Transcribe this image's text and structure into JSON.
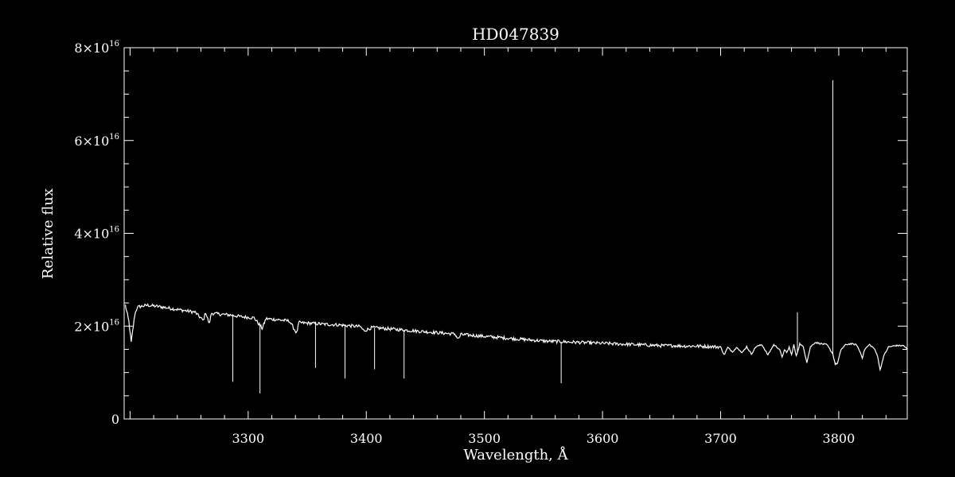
{
  "chart_data": {
    "type": "line",
    "title": "HD047839",
    "xlabel": "Wavelength, Å",
    "ylabel": "Relative flux",
    "xlim": [
      3195,
      3858
    ],
    "ylim": [
      0,
      8e+16
    ],
    "x_ticks": [
      3300,
      3400,
      3500,
      3600,
      3700,
      3800
    ],
    "y_ticks": [
      {
        "value": 0,
        "mantissa": "0",
        "exponent": ""
      },
      {
        "value": 2e+16,
        "mantissa": "2×10",
        "exponent": "16"
      },
      {
        "value": 4e+16,
        "mantissa": "4×10",
        "exponent": "16"
      },
      {
        "value": 6e+16,
        "mantissa": "6×10",
        "exponent": "16"
      },
      {
        "value": 8e+16,
        "mantissa": "8×10",
        "exponent": "16"
      }
    ],
    "colors": {
      "background": "#000000",
      "foreground": "#ffffff"
    },
    "grid": false,
    "series": [
      {
        "x": [
          3196,
          3199,
          3201,
          3204,
          3206,
          3208,
          3215,
          3225,
          3235,
          3245,
          3255,
          3262,
          3264,
          3267,
          3269,
          3275,
          3285,
          3295,
          3305,
          3312,
          3315,
          3325,
          3335,
          3341,
          3343,
          3345,
          3355,
          3365,
          3375,
          3385,
          3395,
          3398,
          3405,
          3415,
          3425,
          3435,
          3445,
          3455,
          3465,
          3475,
          3478,
          3480,
          3490,
          3500,
          3510,
          3520,
          3530,
          3540,
          3550,
          3560,
          3570,
          3580,
          3590,
          3600,
          3610,
          3620,
          3630,
          3640,
          3650,
          3660,
          3670,
          3680,
          3690,
          3700,
          3703,
          3706,
          3710,
          3714,
          3718,
          3722,
          3726,
          3730,
          3735,
          3740,
          3745,
          3750,
          3752,
          3754,
          3756,
          3758,
          3760,
          3762,
          3764,
          3767,
          3770,
          3773,
          3776,
          3780,
          3785,
          3790,
          3795,
          3797,
          3799,
          3802,
          3806,
          3810,
          3815,
          3818,
          3820,
          3822,
          3826,
          3830,
          3833,
          3835,
          3838,
          3842,
          3848,
          3855,
          3858
        ],
        "y": [
          2.45e+16,
          2.1e+16,
          1.65e+16,
          2.25e+16,
          2.4e+16,
          2.42e+16,
          2.45e+16,
          2.42e+16,
          2.38e+16,
          2.34e+16,
          2.3e+16,
          2.12e+16,
          2.3e+16,
          2.05e+16,
          2.28e+16,
          2.26e+16,
          2.24e+16,
          2.2e+16,
          2.18e+16,
          1.95e+16,
          2.16e+16,
          2.14e+16,
          2.11e+16,
          1.85e+16,
          2.08e+16,
          2.07e+16,
          2.06e+16,
          2.04e+16,
          2.03e+16,
          2.01e+16,
          1.99e+16,
          1.9e+16,
          1.97e+16,
          1.95e+16,
          1.93e+16,
          1.91e+16,
          1.89e+16,
          1.87e+16,
          1.85e+16,
          1.83e+16,
          1.72e+16,
          1.82e+16,
          1.8e+16,
          1.78e+16,
          1.76e+16,
          1.74e+16,
          1.72e+16,
          1.7e+16,
          1.68e+16,
          1.67e+16,
          1.66e+16,
          1.65e+16,
          1.64e+16,
          1.63e+16,
          1.62e+16,
          1.61e+16,
          1.6e+16,
          1.59e+16,
          1.58e+16,
          1.58e+16,
          1.57e+16,
          1.57e+16,
          1.56e+16,
          1.55e+16,
          1.38e+16,
          1.54e+16,
          1.45e+16,
          1.55e+16,
          1.42e+16,
          1.56e+16,
          1.4e+16,
          1.56e+16,
          1.6e+16,
          1.38e+16,
          1.6e+16,
          1.5e+16,
          1.32e+16,
          1.5e+16,
          1.42e+16,
          1.55e+16,
          1.38e+16,
          1.6e+16,
          1.35e+16,
          1.62e+16,
          1.55e+16,
          1.22e+16,
          1.55e+16,
          1.65e+16,
          1.62e+16,
          1.6e+16,
          1.4e+16,
          1.18e+16,
          1.2e+16,
          1.5e+16,
          1.6e+16,
          1.62e+16,
          1.6e+16,
          1.45e+16,
          1.32e+16,
          1.5e+16,
          1.6e+16,
          1.52e+16,
          1.35e+16,
          1.05e+16,
          1.35e+16,
          1.55e+16,
          1.58e+16,
          1.58e+16,
          1.5e+16
        ]
      }
    ],
    "spikes": [
      {
        "x": 3287,
        "y": 8000000000000000.0
      },
      {
        "x": 3310,
        "y": 5500000000000000.0
      },
      {
        "x": 3357,
        "y": 1.1e+16
      },
      {
        "x": 3382,
        "y": 8700000000000000.0
      },
      {
        "x": 3407,
        "y": 1.07e+16
      },
      {
        "x": 3432,
        "y": 8700000000000000.0
      },
      {
        "x": 3565,
        "y": 7700000000000000.0
      },
      {
        "x": 3765,
        "y": 2.3e+16
      },
      {
        "x": 3795,
        "y": 7.3e+16
      }
    ]
  }
}
